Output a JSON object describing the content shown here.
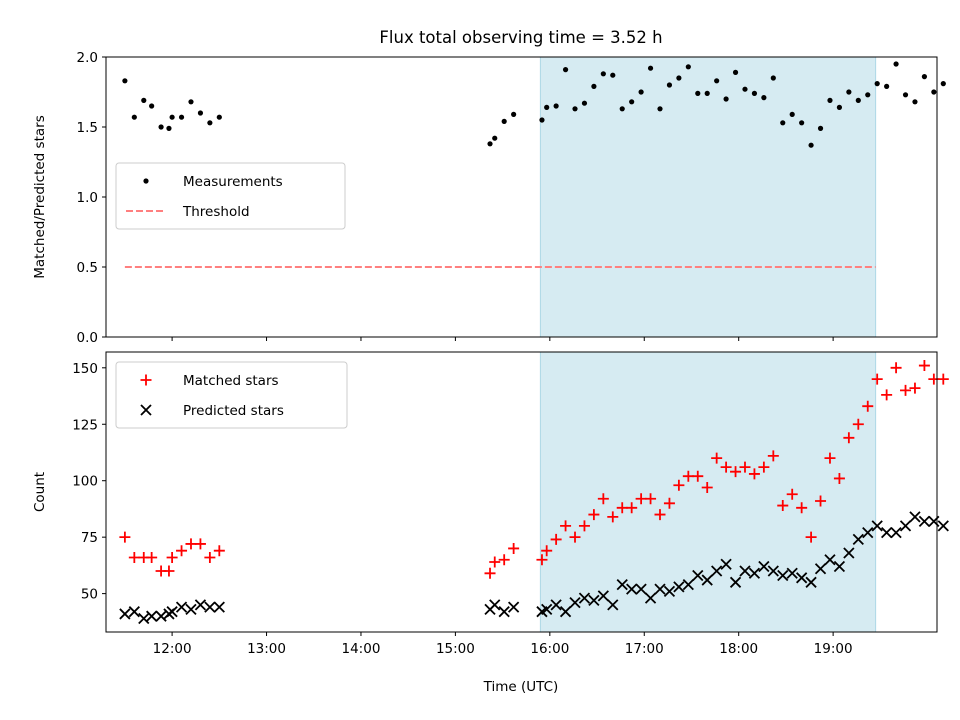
{
  "title": "Flux total observing time = 3.52 h",
  "xlabel": "Time (UTC)",
  "colors": {
    "shade": "#add8e6",
    "threshold": "#ff7f7f",
    "matched": "#ff0000",
    "predicted": "#000000",
    "measurement": "#000000"
  },
  "chart_data": [
    {
      "type": "scatter",
      "panel": "top",
      "ylabel": "Matched/Predicted stars",
      "xlim": [
        "11:18",
        "20:06"
      ],
      "ylim": [
        0,
        2.0
      ],
      "yticks": [
        0.0,
        0.5,
        1.0,
        1.5,
        2.0
      ],
      "ytick_labels": [
        "0.0",
        "0.5",
        "1.0",
        "1.5",
        "2.0"
      ],
      "xticks": [
        "12:00",
        "13:00",
        "14:00",
        "15:00",
        "16:00",
        "17:00",
        "18:00",
        "19:00"
      ],
      "shaded_interval": [
        "15:54",
        "19:27"
      ],
      "legend": {
        "position": "center-left",
        "entries": [
          "Measurements",
          "Threshold"
        ]
      },
      "threshold": {
        "name": "Threshold",
        "value": 0.5,
        "x": [
          "11:30",
          "19:27"
        ]
      },
      "series": [
        {
          "name": "Measurements",
          "marker": "dot",
          "points": [
            [
              "11:30",
              1.83
            ],
            [
              "11:36",
              1.57
            ],
            [
              "11:42",
              1.69
            ],
            [
              "11:47",
              1.65
            ],
            [
              "11:53",
              1.5
            ],
            [
              "11:58",
              1.49
            ],
            [
              "12:00",
              1.57
            ],
            [
              "12:06",
              1.57
            ],
            [
              "12:12",
              1.68
            ],
            [
              "12:18",
              1.6
            ],
            [
              "12:24",
              1.53
            ],
            [
              "12:30",
              1.57
            ],
            [
              "15:22",
              1.38
            ],
            [
              "15:25",
              1.42
            ],
            [
              "15:31",
              1.54
            ],
            [
              "15:37",
              1.59
            ],
            [
              "15:55",
              1.55
            ],
            [
              "15:58",
              1.64
            ],
            [
              "16:04",
              1.65
            ],
            [
              "16:10",
              1.91
            ],
            [
              "16:16",
              1.63
            ],
            [
              "16:22",
              1.67
            ],
            [
              "16:28",
              1.79
            ],
            [
              "16:34",
              1.88
            ],
            [
              "16:40",
              1.87
            ],
            [
              "16:46",
              1.63
            ],
            [
              "16:52",
              1.68
            ],
            [
              "16:58",
              1.75
            ],
            [
              "17:04",
              1.92
            ],
            [
              "17:10",
              1.63
            ],
            [
              "17:16",
              1.8
            ],
            [
              "17:22",
              1.85
            ],
            [
              "17:28",
              1.93
            ],
            [
              "17:34",
              1.74
            ],
            [
              "17:40",
              1.74
            ],
            [
              "17:46",
              1.83
            ],
            [
              "17:52",
              1.7
            ],
            [
              "17:58",
              1.89
            ],
            [
              "18:04",
              1.77
            ],
            [
              "18:10",
              1.74
            ],
            [
              "18:16",
              1.71
            ],
            [
              "18:22",
              1.85
            ],
            [
              "18:28",
              1.53
            ],
            [
              "18:34",
              1.59
            ],
            [
              "18:40",
              1.53
            ],
            [
              "18:46",
              1.37
            ],
            [
              "18:52",
              1.49
            ],
            [
              "18:58",
              1.69
            ],
            [
              "19:04",
              1.64
            ],
            [
              "19:10",
              1.75
            ],
            [
              "19:16",
              1.69
            ],
            [
              "19:22",
              1.73
            ],
            [
              "19:28",
              1.81
            ],
            [
              "19:34",
              1.79
            ],
            [
              "19:40",
              1.95
            ],
            [
              "19:46",
              1.73
            ],
            [
              "19:52",
              1.68
            ],
            [
              "19:58",
              1.86
            ],
            [
              "20:04",
              1.75
            ],
            [
              "20:10",
              1.81
            ]
          ]
        }
      ]
    },
    {
      "type": "scatter",
      "panel": "bottom",
      "ylabel": "Count",
      "xlim": [
        "11:18",
        "20:06"
      ],
      "ylim": [
        33,
        157
      ],
      "yticks": [
        50,
        75,
        100,
        125,
        150
      ],
      "ytick_labels": [
        "50",
        "75",
        "100",
        "125",
        "150"
      ],
      "xticks": [
        "12:00",
        "13:00",
        "14:00",
        "15:00",
        "16:00",
        "17:00",
        "18:00",
        "19:00"
      ],
      "xtick_labels": [
        "12:00",
        "13:00",
        "14:00",
        "15:00",
        "16:00",
        "17:00",
        "18:00",
        "19:00"
      ],
      "shaded_interval": [
        "15:54",
        "19:27"
      ],
      "legend": {
        "position": "top-left",
        "entries": [
          "Matched stars",
          "Predicted stars"
        ]
      },
      "series": [
        {
          "name": "Matched stars",
          "marker": "plus",
          "points": [
            [
              "11:30",
              75
            ],
            [
              "11:36",
              66
            ],
            [
              "11:42",
              66
            ],
            [
              "11:47",
              66
            ],
            [
              "11:53",
              60
            ],
            [
              "11:58",
              60
            ],
            [
              "12:00",
              66
            ],
            [
              "12:06",
              69
            ],
            [
              "12:12",
              72
            ],
            [
              "12:18",
              72
            ],
            [
              "12:24",
              66
            ],
            [
              "12:30",
              69
            ],
            [
              "15:22",
              59
            ],
            [
              "15:25",
              64
            ],
            [
              "15:31",
              65
            ],
            [
              "15:37",
              70
            ],
            [
              "15:55",
              65
            ],
            [
              "15:58",
              69
            ],
            [
              "16:04",
              74
            ],
            [
              "16:10",
              80
            ],
            [
              "16:16",
              75
            ],
            [
              "16:22",
              80
            ],
            [
              "16:28",
              85
            ],
            [
              "16:34",
              92
            ],
            [
              "16:40",
              84
            ],
            [
              "16:46",
              88
            ],
            [
              "16:52",
              88
            ],
            [
              "16:58",
              92
            ],
            [
              "17:04",
              92
            ],
            [
              "17:10",
              85
            ],
            [
              "17:16",
              90
            ],
            [
              "17:22",
              98
            ],
            [
              "17:28",
              102
            ],
            [
              "17:34",
              102
            ],
            [
              "17:40",
              97
            ],
            [
              "17:46",
              110
            ],
            [
              "17:52",
              106
            ],
            [
              "17:58",
              104
            ],
            [
              "18:04",
              106
            ],
            [
              "18:10",
              103
            ],
            [
              "18:16",
              106
            ],
            [
              "18:22",
              111
            ],
            [
              "18:28",
              89
            ],
            [
              "18:34",
              94
            ],
            [
              "18:40",
              88
            ],
            [
              "18:46",
              75
            ],
            [
              "18:52",
              91
            ],
            [
              "18:58",
              110
            ],
            [
              "19:04",
              101
            ],
            [
              "19:10",
              119
            ],
            [
              "19:16",
              125
            ],
            [
              "19:22",
              133
            ],
            [
              "19:28",
              145
            ],
            [
              "19:34",
              138
            ],
            [
              "19:40",
              150
            ],
            [
              "19:46",
              140
            ],
            [
              "19:52",
              141
            ],
            [
              "19:58",
              151
            ],
            [
              "20:04",
              145
            ],
            [
              "20:10",
              145
            ]
          ]
        },
        {
          "name": "Predicted stars",
          "marker": "x",
          "points": [
            [
              "11:30",
              41
            ],
            [
              "11:36",
              42
            ],
            [
              "11:42",
              39
            ],
            [
              "11:47",
              40
            ],
            [
              "11:53",
              40
            ],
            [
              "11:58",
              41
            ],
            [
              "12:00",
              42
            ],
            [
              "12:06",
              44
            ],
            [
              "12:12",
              43
            ],
            [
              "12:18",
              45
            ],
            [
              "12:24",
              44
            ],
            [
              "12:30",
              44
            ],
            [
              "15:22",
              43
            ],
            [
              "15:25",
              45
            ],
            [
              "15:31",
              42
            ],
            [
              "15:37",
              44
            ],
            [
              "15:55",
              42
            ],
            [
              "15:58",
              43
            ],
            [
              "16:04",
              45
            ],
            [
              "16:10",
              42
            ],
            [
              "16:16",
              46
            ],
            [
              "16:22",
              48
            ],
            [
              "16:28",
              47
            ],
            [
              "16:34",
              49
            ],
            [
              "16:40",
              45
            ],
            [
              "16:46",
              54
            ],
            [
              "16:52",
              52
            ],
            [
              "16:58",
              52
            ],
            [
              "17:04",
              48
            ],
            [
              "17:10",
              52
            ],
            [
              "17:16",
              51
            ],
            [
              "17:22",
              53
            ],
            [
              "17:28",
              54
            ],
            [
              "17:34",
              58
            ],
            [
              "17:40",
              56
            ],
            [
              "17:46",
              60
            ],
            [
              "17:52",
              63
            ],
            [
              "17:58",
              55
            ],
            [
              "18:04",
              60
            ],
            [
              "18:10",
              59
            ],
            [
              "18:16",
              62
            ],
            [
              "18:22",
              60
            ],
            [
              "18:28",
              58
            ],
            [
              "18:34",
              59
            ],
            [
              "18:40",
              57
            ],
            [
              "18:46",
              55
            ],
            [
              "18:52",
              61
            ],
            [
              "18:58",
              65
            ],
            [
              "19:04",
              62
            ],
            [
              "19:10",
              68
            ],
            [
              "19:16",
              74
            ],
            [
              "19:22",
              77
            ],
            [
              "19:28",
              80
            ],
            [
              "19:34",
              77
            ],
            [
              "19:40",
              77
            ],
            [
              "19:46",
              80
            ],
            [
              "19:52",
              84
            ],
            [
              "19:58",
              82
            ],
            [
              "20:04",
              82
            ],
            [
              "20:10",
              80
            ]
          ]
        }
      ]
    }
  ]
}
